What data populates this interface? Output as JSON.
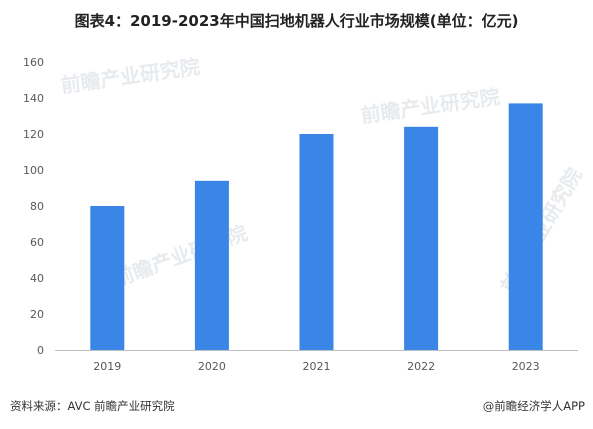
{
  "title": "图表4：2019-2023年中国扫地机器人行业市场规模(单位：亿元)",
  "watermark": "前瞻产业研究院",
  "footer": {
    "source": "资料来源：AVC 前瞻产业研究院",
    "brand": "@前瞻经济学人APP"
  },
  "colors": {
    "bar": "#3a86e6",
    "axis": "#bfbfbf",
    "text": "#595959"
  },
  "chart_data": {
    "type": "bar",
    "categories": [
      "2019",
      "2020",
      "2021",
      "2022",
      "2023"
    ],
    "values": [
      80,
      94,
      120,
      124,
      137
    ],
    "title": "图表4：2019-2023年中国扫地机器人行业市场规模(单位：亿元)",
    "xlabel": "",
    "ylabel": "",
    "ylim": [
      0,
      160
    ],
    "yticks": [
      0,
      20,
      40,
      60,
      80,
      100,
      120,
      140,
      160
    ],
    "grid": false,
    "legend": "none"
  }
}
